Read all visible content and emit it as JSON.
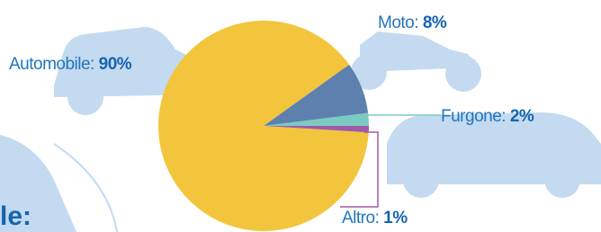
{
  "chart_data": {
    "type": "pie",
    "categories": [
      "Automobile:",
      "Moto:",
      "Furgone:",
      "Altro:"
    ],
    "values": [
      90,
      8,
      2,
      1
    ],
    "value_labels": [
      "90%",
      "8%",
      "2%",
      "1%"
    ],
    "colors": [
      "#f2c53d",
      "#5e80ae",
      "#7ccbc2",
      "#a15aa9"
    ],
    "clipped_heading": "le:"
  }
}
